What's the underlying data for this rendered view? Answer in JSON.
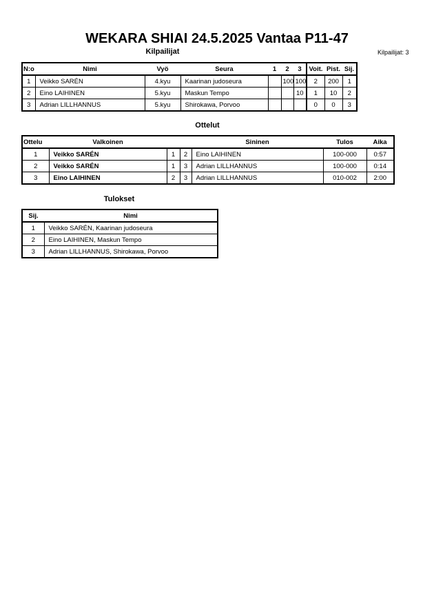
{
  "title": "WEKARA SHIAI  24.5.2025  Vantaa   P11-47",
  "competitors": {
    "heading": "Kilpailijat",
    "count_label": "Kilpailijat: 3",
    "headers": [
      "N:o",
      "Nimi",
      "Vyö",
      "Seura",
      "1",
      "2",
      "3",
      "Voit.",
      "Pist.",
      "Sij."
    ],
    "rows": [
      [
        "1",
        "Veikko SARÉN",
        "4.kyu",
        "Kaarinan judoseura",
        "",
        "100",
        "100",
        "2",
        "200",
        "1"
      ],
      [
        "2",
        "Eino LAIHINEN",
        "5.kyu",
        "Maskun Tempo",
        "",
        "",
        "10",
        "1",
        "10",
        "2"
      ],
      [
        "3",
        "Adrian LILLHANNUS",
        "5.kyu",
        "Shirokawa, Porvoo",
        "",
        "",
        "",
        "0",
        "0",
        "3"
      ]
    ]
  },
  "matches": {
    "heading": "Ottelut",
    "headers": [
      "Ottelu",
      "Valkoinen",
      "Sininen",
      "Tulos",
      "Aika"
    ],
    "rows": [
      [
        "1",
        "Veikko SARÉN",
        "1",
        "2",
        "Eino LAIHINEN",
        "100-000",
        "0:57"
      ],
      [
        "2",
        "Veikko SARÉN",
        "1",
        "3",
        "Adrian LILLHANNUS",
        "100-000",
        "0:14"
      ],
      [
        "3",
        "Eino LAIHINEN",
        "2",
        "3",
        "Adrian LILLHANNUS",
        "010-002",
        "2:00"
      ]
    ]
  },
  "results": {
    "heading": "Tulokset",
    "headers": [
      "Sij.",
      "Nimi"
    ],
    "rows": [
      [
        "1",
        "Veikko SARÉN, Kaarinan judoseura"
      ],
      [
        "2",
        "Eino LAIHINEN, Maskun Tempo"
      ],
      [
        "3",
        "Adrian LILLHANNUS, Shirokawa, Porvoo"
      ]
    ]
  }
}
